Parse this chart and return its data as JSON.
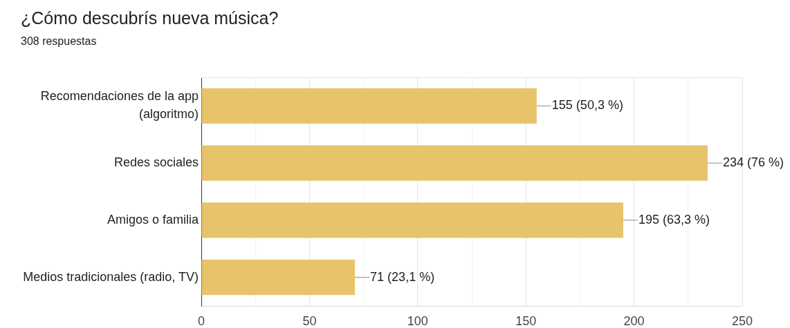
{
  "chart_data": {
    "type": "bar",
    "orientation": "horizontal",
    "title": "¿Cómo descubrís nueva música?",
    "subtitle": "308 respuestas",
    "categories": [
      "Recomendaciones de la app (algoritmo)",
      "Redes sociales",
      "Amigos o familia",
      "Medios tradicionales (radio, TV)"
    ],
    "values": [
      155,
      234,
      195,
      71
    ],
    "color": "#e7c36c",
    "value_labels": [
      "155 (50,3 %)",
      "234 (76 %)",
      "195 (63,3 %)",
      "71 (23,1 %)"
    ],
    "xlim": [
      0,
      250
    ],
    "xticks": [
      0,
      {
        "value": 25,
        "label": null
      },
      50,
      {
        "value": 75,
        "label": null
      },
      100,
      {
        "value": 125,
        "label": null
      },
      150,
      {
        "value": 175,
        "label": null
      },
      200,
      {
        "value": 225,
        "label": null
      },
      250
    ],
    "grid": "x"
  }
}
